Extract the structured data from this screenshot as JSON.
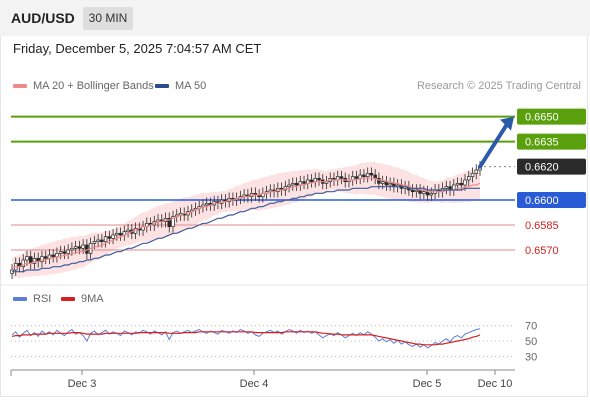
{
  "header": {
    "symbol": "AUD/USD",
    "interval": "30 MIN"
  },
  "datetime": "Friday, December 5, 2025 7:04:57 AM CET",
  "legend": {
    "ma20_label": "MA 20 + Bollinger Bands",
    "ma20_color": "#f08a8a",
    "ma50_label": "MA 50",
    "ma50_color": "#2f4d8c"
  },
  "credit": "Research © 2025 Trading Central",
  "rsi_legend": {
    "rsi_label": "RSI",
    "rsi_color": "#5b7fd6",
    "ma_label": "9MA",
    "ma_color": "#d62020"
  },
  "colors": {
    "candle_up": "#ffffff",
    "candle_down": "#2a2a2a",
    "bollinger_fill": "#fbd8d8",
    "ma20": "#f08a8a",
    "ma50": "#3b5a9a",
    "arrow": "#2a5aa8"
  },
  "chart_data": [
    {
      "type": "candlestick",
      "title": "",
      "ylim": [
        0.6552,
        0.666
      ],
      "x_ticks": [
        "Dec 3",
        "Dec 4",
        "Dec 5",
        "Dec 10"
      ],
      "levels": [
        {
          "value": 0.665,
          "label": "0.6650",
          "role": "resistance",
          "color": "#5aa00c",
          "label_bg": "#5aa00c",
          "label_color": "#ffffff"
        },
        {
          "value": 0.6635,
          "label": "0.6635",
          "role": "resistance",
          "color": "#5aa00c",
          "label_bg": "#5aa00c",
          "label_color": "#ffffff"
        },
        {
          "value": 0.662,
          "label": "0.6620",
          "role": "last_price",
          "color": "#888888",
          "label_bg": "#2a2a2a",
          "label_color": "#ffffff"
        },
        {
          "value": 0.66,
          "label": "0.6600",
          "role": "pivot",
          "color": "#2a5bd7",
          "label_bg": "#2a5bd7",
          "label_color": "#ffffff"
        },
        {
          "value": 0.6585,
          "label": "0.6585",
          "role": "support",
          "color": "#e08a8a",
          "label_bg": "",
          "label_color": "#d62020"
        },
        {
          "value": 0.657,
          "label": "0.6570",
          "role": "support",
          "color": "#e08a8a",
          "label_bg": "",
          "label_color": "#d62020"
        }
      ],
      "series": [
        {
          "name": "price",
          "close": [
            0.6558,
            0.6562,
            0.656,
            0.6564,
            0.6566,
            0.6562,
            0.6565,
            0.6563,
            0.6566,
            0.6565,
            0.6567,
            0.6566,
            0.6568,
            0.6569,
            0.6568,
            0.657,
            0.6571,
            0.6572,
            0.6571,
            0.6573,
            0.6568,
            0.6574,
            0.6575,
            0.6576,
            0.6575,
            0.6578,
            0.6577,
            0.6579,
            0.658,
            0.6579,
            0.6581,
            0.6582,
            0.658,
            0.6583,
            0.6582,
            0.6584,
            0.6586,
            0.6585,
            0.6587,
            0.6588,
            0.6587,
            0.6589,
            0.6584,
            0.659,
            0.6591,
            0.6592,
            0.6591,
            0.6593,
            0.6594,
            0.6595,
            0.6596,
            0.6597,
            0.6598,
            0.6597,
            0.6599,
            0.6598,
            0.66,
            0.6599,
            0.6601,
            0.66,
            0.6601,
            0.6602,
            0.6603,
            0.6602,
            0.6604,
            0.6603,
            0.6602,
            0.6604,
            0.6605,
            0.6606,
            0.6605,
            0.6607,
            0.6606,
            0.6608,
            0.6609,
            0.661,
            0.6609,
            0.6611,
            0.661,
            0.6612,
            0.6611,
            0.6613,
            0.6612,
            0.661,
            0.6611,
            0.6613,
            0.6612,
            0.6614,
            0.6613,
            0.6611,
            0.6612,
            0.6614,
            0.6613,
            0.6615,
            0.6614,
            0.6616,
            0.6615,
            0.6613,
            0.661,
            0.6611,
            0.6609,
            0.661,
            0.6608,
            0.6609,
            0.6607,
            0.6608,
            0.6606,
            0.6605,
            0.6606,
            0.6604,
            0.6605,
            0.6603,
            0.6604,
            0.6606,
            0.6605,
            0.6607,
            0.6608,
            0.6606,
            0.6609,
            0.661,
            0.6609,
            0.6612,
            0.6614,
            0.6616,
            0.6618,
            0.662
          ]
        },
        {
          "name": "MA 20",
          "values": [
            0.6559,
            0.656,
            0.656,
            0.6561,
            0.6562,
            0.6562,
            0.6563,
            0.6563,
            0.6564,
            0.6564,
            0.6565,
            0.6565,
            0.6566,
            0.6566,
            0.6567,
            0.6567,
            0.6568,
            0.6568,
            0.6569,
            0.6569,
            0.657,
            0.6571,
            0.6572,
            0.6572,
            0.6573,
            0.6574,
            0.6575,
            0.6576,
            0.6577,
            0.6578,
            0.6579,
            0.658,
            0.6581,
            0.6582,
            0.6583,
            0.6584,
            0.6584,
            0.6585,
            0.6586,
            0.6587,
            0.6587,
            0.6588,
            0.6588,
            0.6589,
            0.659,
            0.6591,
            0.6592,
            0.6592,
            0.6593,
            0.6594,
            0.6595,
            0.6596,
            0.6596,
            0.6597,
            0.6598,
            0.6598,
            0.6599,
            0.6599,
            0.66,
            0.66,
            0.6601,
            0.6601,
            0.6602,
            0.6602,
            0.6603,
            0.6603,
            0.6603,
            0.6604,
            0.6604,
            0.6605,
            0.6605,
            0.6606,
            0.6606,
            0.6607,
            0.6607,
            0.6608,
            0.6608,
            0.6609,
            0.6609,
            0.661,
            0.661,
            0.6611,
            0.6611,
            0.6611,
            0.6611,
            0.6612,
            0.6612,
            0.6612,
            0.6612,
            0.6612,
            0.6612,
            0.6612,
            0.6612,
            0.6613,
            0.6613,
            0.6613,
            0.6613,
            0.6613,
            0.6612,
            0.6612,
            0.6611,
            0.6611,
            0.661,
            0.661,
            0.6609,
            0.6609,
            0.6608,
            0.6607,
            0.6607,
            0.6606,
            0.6606,
            0.6605,
            0.6605,
            0.6605,
            0.6605,
            0.6605,
            0.6606,
            0.6606,
            0.6606,
            0.6607,
            0.6607,
            0.6608,
            0.6608,
            0.6609,
            0.6609,
            0.661
          ]
        },
        {
          "name": "MA 50",
          "values": [
            0.6557,
            0.6557,
            0.6557,
            0.6557,
            0.6558,
            0.6558,
            0.6558,
            0.6558,
            0.6559,
            0.6559,
            0.6559,
            0.656,
            0.656,
            0.656,
            0.6561,
            0.6561,
            0.6562,
            0.6562,
            0.6563,
            0.6563,
            0.6564,
            0.6564,
            0.6565,
            0.6565,
            0.6566,
            0.6567,
            0.6567,
            0.6568,
            0.6569,
            0.6569,
            0.657,
            0.6571,
            0.6571,
            0.6572,
            0.6573,
            0.6574,
            0.6574,
            0.6575,
            0.6576,
            0.6577,
            0.6577,
            0.6578,
            0.6579,
            0.658,
            0.658,
            0.6581,
            0.6582,
            0.6583,
            0.6583,
            0.6584,
            0.6585,
            0.6586,
            0.6586,
            0.6587,
            0.6588,
            0.6589,
            0.6589,
            0.659,
            0.6591,
            0.6591,
            0.6592,
            0.6593,
            0.6593,
            0.6594,
            0.6595,
            0.6595,
            0.6596,
            0.6596,
            0.6597,
            0.6598,
            0.6598,
            0.6599,
            0.6599,
            0.66,
            0.66,
            0.6601,
            0.6601,
            0.6602,
            0.6602,
            0.6603,
            0.6603,
            0.6604,
            0.6604,
            0.6604,
            0.6605,
            0.6605,
            0.6605,
            0.6606,
            0.6606,
            0.6606,
            0.6606,
            0.6607,
            0.6607,
            0.6607,
            0.6607,
            0.6607,
            0.6608,
            0.6608,
            0.6608,
            0.6608,
            0.6608,
            0.6608,
            0.6608,
            0.6608,
            0.6608,
            0.6608,
            0.6607,
            0.6607,
            0.6607,
            0.6607,
            0.6607,
            0.6606,
            0.6606,
            0.6606,
            0.6606,
            0.6606,
            0.6606,
            0.6606,
            0.6606,
            0.6606,
            0.6606,
            0.6607,
            0.6607,
            0.6607,
            0.6607,
            0.6607
          ]
        }
      ],
      "forecast": {
        "from": 0.662,
        "to": 0.665,
        "direction": "up"
      }
    },
    {
      "type": "line",
      "title": "RSI",
      "ylim": [
        20,
        80
      ],
      "y_ticks": [
        70,
        50,
        30
      ],
      "series": [
        {
          "name": "RSI",
          "values": [
            58,
            62,
            55,
            60,
            64,
            57,
            61,
            56,
            63,
            59,
            62,
            58,
            64,
            60,
            57,
            62,
            65,
            59,
            61,
            57,
            50,
            60,
            63,
            58,
            61,
            64,
            59,
            62,
            60,
            57,
            63,
            61,
            58,
            62,
            60,
            64,
            62,
            59,
            63,
            61,
            58,
            62,
            52,
            61,
            63,
            60,
            62,
            64,
            61,
            63,
            65,
            62,
            60,
            63,
            61,
            59,
            64,
            62,
            60,
            63,
            61,
            65,
            63,
            60,
            62,
            58,
            56,
            60,
            62,
            64,
            61,
            63,
            59,
            62,
            65,
            63,
            60,
            64,
            61,
            63,
            60,
            62,
            58,
            54,
            57,
            60,
            57,
            61,
            58,
            54,
            57,
            60,
            57,
            61,
            58,
            62,
            59,
            55,
            50,
            53,
            49,
            52,
            47,
            51,
            46,
            49,
            45,
            43,
            46,
            42,
            45,
            41,
            44,
            48,
            46,
            50,
            53,
            49,
            55,
            57,
            54,
            59,
            61,
            63,
            65,
            66
          ]
        },
        {
          "name": "9MA",
          "values": [
            56,
            57,
            57,
            58,
            58,
            58,
            59,
            59,
            59,
            59,
            60,
            60,
            60,
            60,
            60,
            60,
            61,
            61,
            61,
            60,
            59,
            59,
            59,
            59,
            59,
            60,
            60,
            60,
            60,
            60,
            60,
            60,
            60,
            60,
            61,
            61,
            61,
            61,
            61,
            61,
            61,
            61,
            60,
            60,
            60,
            60,
            61,
            61,
            61,
            61,
            62,
            62,
            62,
            62,
            62,
            62,
            62,
            62,
            62,
            62,
            62,
            62,
            62,
            62,
            62,
            61,
            61,
            61,
            61,
            61,
            61,
            61,
            61,
            62,
            62,
            62,
            62,
            62,
            62,
            62,
            62,
            62,
            61,
            60,
            60,
            59,
            59,
            59,
            58,
            58,
            58,
            58,
            58,
            58,
            58,
            58,
            58,
            57,
            56,
            55,
            54,
            53,
            52,
            51,
            50,
            49,
            48,
            47,
            46,
            46,
            45,
            45,
            45,
            45,
            46,
            46,
            47,
            48,
            49,
            50,
            51,
            52,
            53,
            55,
            56,
            58
          ]
        }
      ]
    }
  ]
}
